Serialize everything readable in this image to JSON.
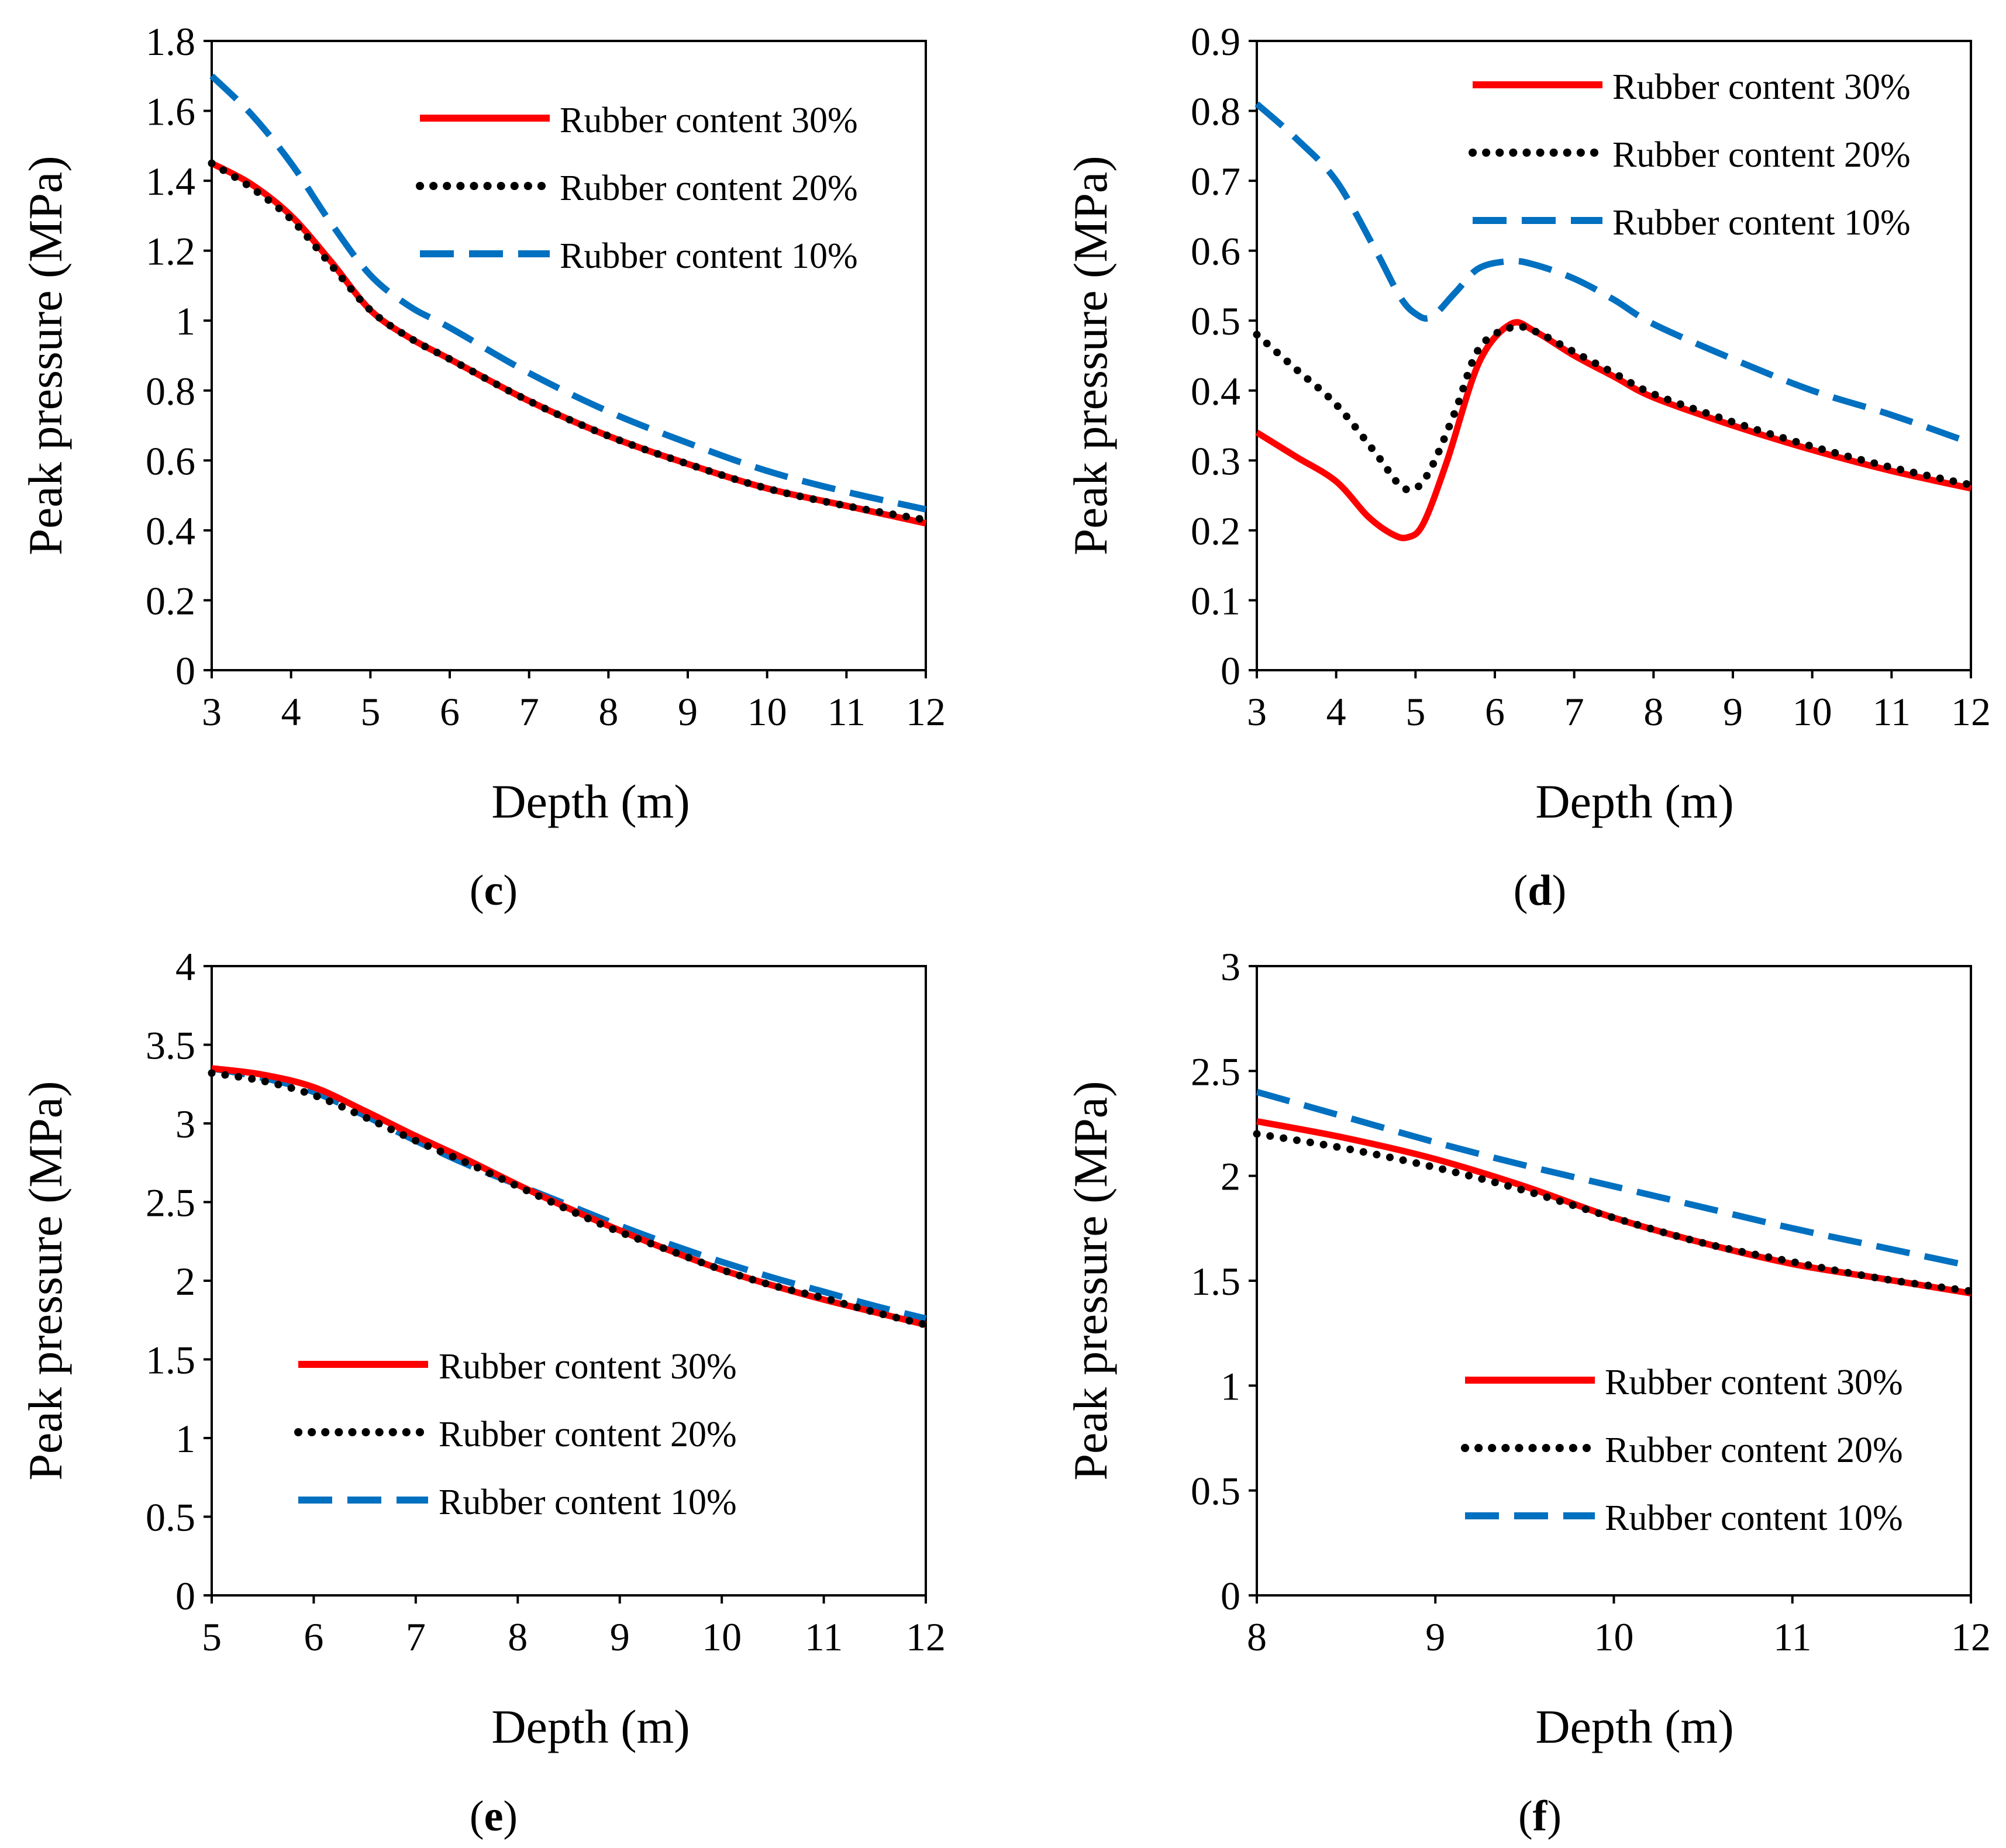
{
  "series_styles": [
    {
      "name": "Rubber content 30%",
      "color": "#FF0000",
      "style": "solid"
    },
    {
      "name": "Rubber content 20%",
      "color": "#000000",
      "style": "dotted"
    },
    {
      "name": "Rubber content 10%",
      "color": "#0070C0",
      "style": "dashed"
    }
  ],
  "chart_data": [
    {
      "id": "c",
      "panel_label": "c",
      "type": "line",
      "xlabel": "Depth (m)",
      "ylabel": "Peak pressure (MPa)",
      "xlim": [
        3,
        12
      ],
      "ylim": [
        0,
        1.8
      ],
      "xticks": [
        3,
        4,
        5,
        6,
        7,
        8,
        9,
        10,
        11,
        12
      ],
      "yticks": [
        0,
        0.2,
        0.4,
        0.6,
        0.8,
        1,
        1.2,
        1.4,
        1.6,
        1.8
      ],
      "legend_position": "top-right",
      "series": [
        {
          "name": "Rubber content 30%",
          "x": [
            3,
            3.5,
            4,
            4.5,
            5,
            5.5,
            6,
            7,
            8,
            9,
            10,
            11,
            12
          ],
          "y": [
            1.45,
            1.39,
            1.3,
            1.17,
            1.03,
            0.95,
            0.89,
            0.77,
            0.67,
            0.59,
            0.52,
            0.47,
            0.42
          ]
        },
        {
          "name": "Rubber content 20%",
          "x": [
            3,
            3.5,
            4,
            4.5,
            5,
            5.5,
            6,
            7,
            8,
            9,
            10,
            11,
            12
          ],
          "y": [
            1.45,
            1.38,
            1.29,
            1.16,
            1.03,
            0.95,
            0.89,
            0.77,
            0.67,
            0.59,
            0.52,
            0.47,
            0.43
          ]
        },
        {
          "name": "Rubber content 10%",
          "x": [
            3,
            3.5,
            4,
            4.5,
            5,
            5.5,
            6,
            7,
            8,
            9,
            10,
            11,
            12
          ],
          "y": [
            1.7,
            1.59,
            1.45,
            1.28,
            1.13,
            1.04,
            0.98,
            0.85,
            0.74,
            0.65,
            0.57,
            0.51,
            0.46
          ]
        }
      ]
    },
    {
      "id": "d",
      "panel_label": "d",
      "type": "line",
      "xlabel": "Depth (m)",
      "ylabel": "Peak pressure (MPa)",
      "xlim": [
        3,
        12
      ],
      "ylim": [
        0,
        0.9
      ],
      "xticks": [
        3,
        4,
        5,
        6,
        7,
        8,
        9,
        10,
        11,
        12
      ],
      "yticks": [
        0,
        0.1,
        0.2,
        0.3,
        0.4,
        0.5,
        0.6,
        0.7,
        0.8,
        0.9
      ],
      "legend_position": "top-right",
      "series": [
        {
          "name": "Rubber content 30%",
          "x": [
            3,
            3.5,
            4,
            4.4,
            4.7,
            4.9,
            5.1,
            5.4,
            5.8,
            6.2,
            6.5,
            7,
            7.5,
            8,
            9,
            10,
            11,
            12
          ],
          "y": [
            0.34,
            0.305,
            0.27,
            0.22,
            0.195,
            0.19,
            0.21,
            0.3,
            0.44,
            0.495,
            0.485,
            0.45,
            0.42,
            0.39,
            0.35,
            0.315,
            0.285,
            0.26
          ]
        },
        {
          "name": "Rubber content 20%",
          "x": [
            3,
            3.5,
            4,
            4.5,
            4.8,
            5,
            5.2,
            5.5,
            5.8,
            6.2,
            6.5,
            7,
            7.5,
            8,
            9,
            10,
            11,
            12
          ],
          "y": [
            0.48,
            0.43,
            0.38,
            0.31,
            0.265,
            0.26,
            0.29,
            0.37,
            0.46,
            0.49,
            0.485,
            0.455,
            0.425,
            0.395,
            0.355,
            0.32,
            0.29,
            0.265
          ]
        },
        {
          "name": "Rubber content 10%",
          "x": [
            3,
            3.5,
            4,
            4.5,
            4.8,
            5,
            5.2,
            5.5,
            5.8,
            6.2,
            6.5,
            7,
            7.5,
            8,
            9,
            10,
            11,
            12
          ],
          "y": [
            0.81,
            0.76,
            0.7,
            0.6,
            0.535,
            0.51,
            0.505,
            0.54,
            0.575,
            0.585,
            0.58,
            0.56,
            0.53,
            0.495,
            0.445,
            0.4,
            0.365,
            0.325
          ]
        }
      ]
    },
    {
      "id": "e",
      "panel_label": "e",
      "type": "line",
      "xlabel": "Depth (m)",
      "ylabel": "Peak pressure (MPa)",
      "xlim": [
        5,
        12
      ],
      "ylim": [
        0,
        4
      ],
      "xticks": [
        5,
        6,
        7,
        8,
        9,
        10,
        11,
        12
      ],
      "yticks": [
        0,
        0.5,
        1,
        1.5,
        2,
        2.5,
        3,
        3.5,
        4
      ],
      "legend_position": "bottom-left",
      "series": [
        {
          "name": "Rubber content 30%",
          "x": [
            5,
            5.5,
            6,
            6.5,
            7,
            7.5,
            8,
            8.5,
            9,
            9.5,
            10,
            10.5,
            11,
            11.5,
            12
          ],
          "y": [
            3.35,
            3.31,
            3.23,
            3.08,
            2.92,
            2.77,
            2.61,
            2.46,
            2.32,
            2.19,
            2.07,
            1.97,
            1.88,
            1.8,
            1.72
          ]
        },
        {
          "name": "Rubber content 20%",
          "x": [
            5,
            5.5,
            6,
            6.5,
            7,
            7.5,
            8,
            8.5,
            9,
            9.5,
            10,
            10.5,
            11,
            11.5,
            12
          ],
          "y": [
            3.32,
            3.27,
            3.18,
            3.04,
            2.89,
            2.75,
            2.6,
            2.45,
            2.31,
            2.19,
            2.07,
            1.97,
            1.89,
            1.8,
            1.72
          ]
        },
        {
          "name": "Rubber content 10%",
          "x": [
            5,
            5.5,
            6,
            6.5,
            7,
            7.5,
            8,
            8.5,
            9,
            9.5,
            10,
            10.5,
            11,
            11.5,
            12
          ],
          "y": [
            3.35,
            3.29,
            3.2,
            3.05,
            2.89,
            2.74,
            2.61,
            2.48,
            2.35,
            2.23,
            2.12,
            2.02,
            1.93,
            1.84,
            1.76
          ]
        }
      ]
    },
    {
      "id": "f",
      "panel_label": "f",
      "type": "line",
      "xlabel": "Depth (m)",
      "ylabel": "Peak pressure (MPa)",
      "xlim": [
        8,
        12
      ],
      "ylim": [
        0,
        3
      ],
      "xticks": [
        8,
        9,
        10,
        11,
        12
      ],
      "yticks": [
        0,
        0.5,
        1,
        1.5,
        2,
        2.5,
        3
      ],
      "legend_position": "bottom-right",
      "series": [
        {
          "name": "Rubber content 30%",
          "x": [
            8,
            8.5,
            9,
            9.5,
            10,
            10.5,
            11,
            11.5,
            12
          ],
          "y": [
            2.26,
            2.18,
            2.08,
            1.95,
            1.8,
            1.68,
            1.58,
            1.51,
            1.44
          ]
        },
        {
          "name": "Rubber content 20%",
          "x": [
            8,
            8.5,
            9,
            9.5,
            10,
            10.5,
            11,
            11.5,
            12
          ],
          "y": [
            2.2,
            2.13,
            2.04,
            1.93,
            1.8,
            1.68,
            1.59,
            1.51,
            1.45
          ]
        },
        {
          "name": "Rubber content 10%",
          "x": [
            8,
            8.5,
            9,
            9.5,
            10,
            10.5,
            11,
            11.5,
            12
          ],
          "y": [
            2.4,
            2.28,
            2.16,
            2.05,
            1.95,
            1.85,
            1.75,
            1.66,
            1.57
          ]
        }
      ]
    }
  ]
}
